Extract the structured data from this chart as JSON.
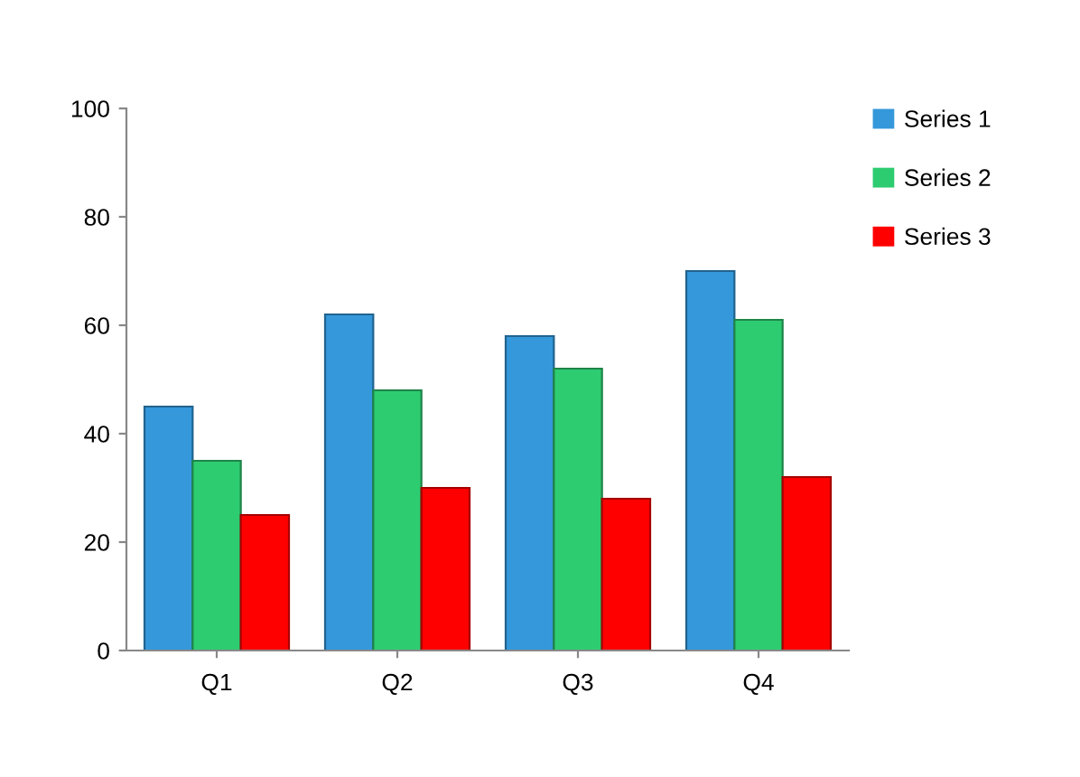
{
  "chart_data": {
    "type": "bar",
    "categories": [
      "Q1",
      "Q2",
      "Q3",
      "Q4"
    ],
    "series": [
      {
        "name": "Series 1",
        "color": "#3498db",
        "values": [
          45,
          62,
          58,
          70
        ]
      },
      {
        "name": "Series 2",
        "color": "#2ecc71",
        "values": [
          35,
          48,
          52,
          61
        ]
      },
      {
        "name": "Series 3",
        "color": "#ff0000",
        "values": [
          25,
          30,
          28,
          32
        ]
      }
    ],
    "ylim": [
      0,
      100
    ],
    "yticks": [
      0,
      20,
      40,
      60,
      80,
      100
    ],
    "grid": false,
    "legend": "top right"
  }
}
